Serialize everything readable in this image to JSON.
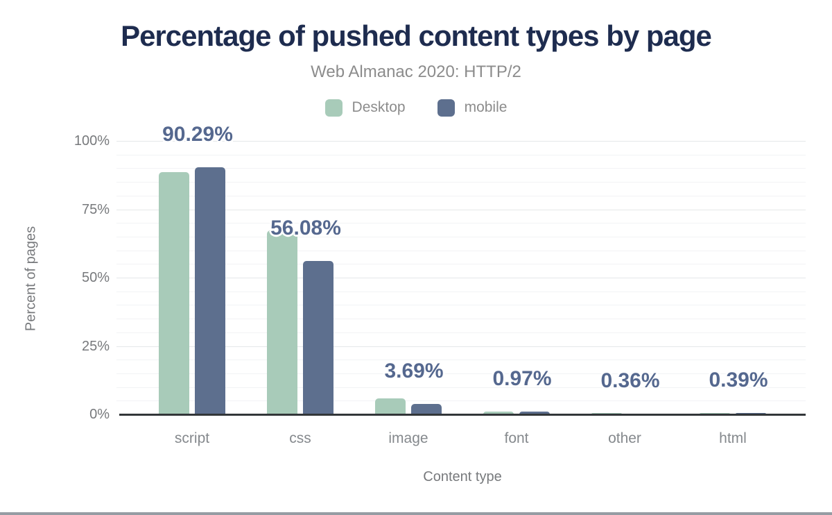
{
  "title": "Percentage of pushed content types by page",
  "subtitle": "Web Almanac 2020: HTTP/2",
  "legend": [
    {
      "label": "Desktop",
      "color": "#a8cbb9"
    },
    {
      "label": "mobile",
      "color": "#5d6f8e"
    }
  ],
  "colors": {
    "title": "#1e2c4f",
    "subtitle": "#8c8c8c",
    "axis_text": "#77797c",
    "value_label": "#55688f",
    "desktop_bar": "#a8cbb9",
    "mobile_bar": "#5d6f8e",
    "grid_major": "#e5e7e9",
    "grid_minor": "#f2f3f5",
    "axis_line": "#333639",
    "page_border": "#969ca3"
  },
  "chart_data": {
    "type": "bar",
    "categories": [
      "script",
      "css",
      "image",
      "font",
      "other",
      "html"
    ],
    "series": [
      {
        "name": "Desktop",
        "color": "#a8cbb9",
        "values": [
          88.7,
          67.3,
          5.95,
          1.04,
          0.55,
          0.5
        ]
      },
      {
        "name": "mobile",
        "color": "#5d6f8e",
        "values": [
          90.29,
          56.08,
          3.69,
          0.97,
          0.36,
          0.39
        ]
      }
    ],
    "data_labels": [
      "90.29%",
      "56.08%",
      "3.69%",
      "0.97%",
      "0.36%",
      "0.39%"
    ],
    "data_labels_source": "mobile",
    "title": "Percentage of pushed content types by page",
    "subtitle": "Web Almanac 2020: HTTP/2",
    "xlabel": "Content type",
    "ylabel": "Percent of pages",
    "ylim": [
      0,
      100
    ],
    "yticks": [
      {
        "value": 0,
        "label": "0%"
      },
      {
        "value": 25,
        "label": "25%"
      },
      {
        "value": 50,
        "label": "50%"
      },
      {
        "value": 75,
        "label": "75%"
      },
      {
        "value": 100,
        "label": "100%"
      }
    ],
    "grid": {
      "major_step": 25,
      "minor_step": 5,
      "visible": true
    },
    "legend_position": "top"
  }
}
